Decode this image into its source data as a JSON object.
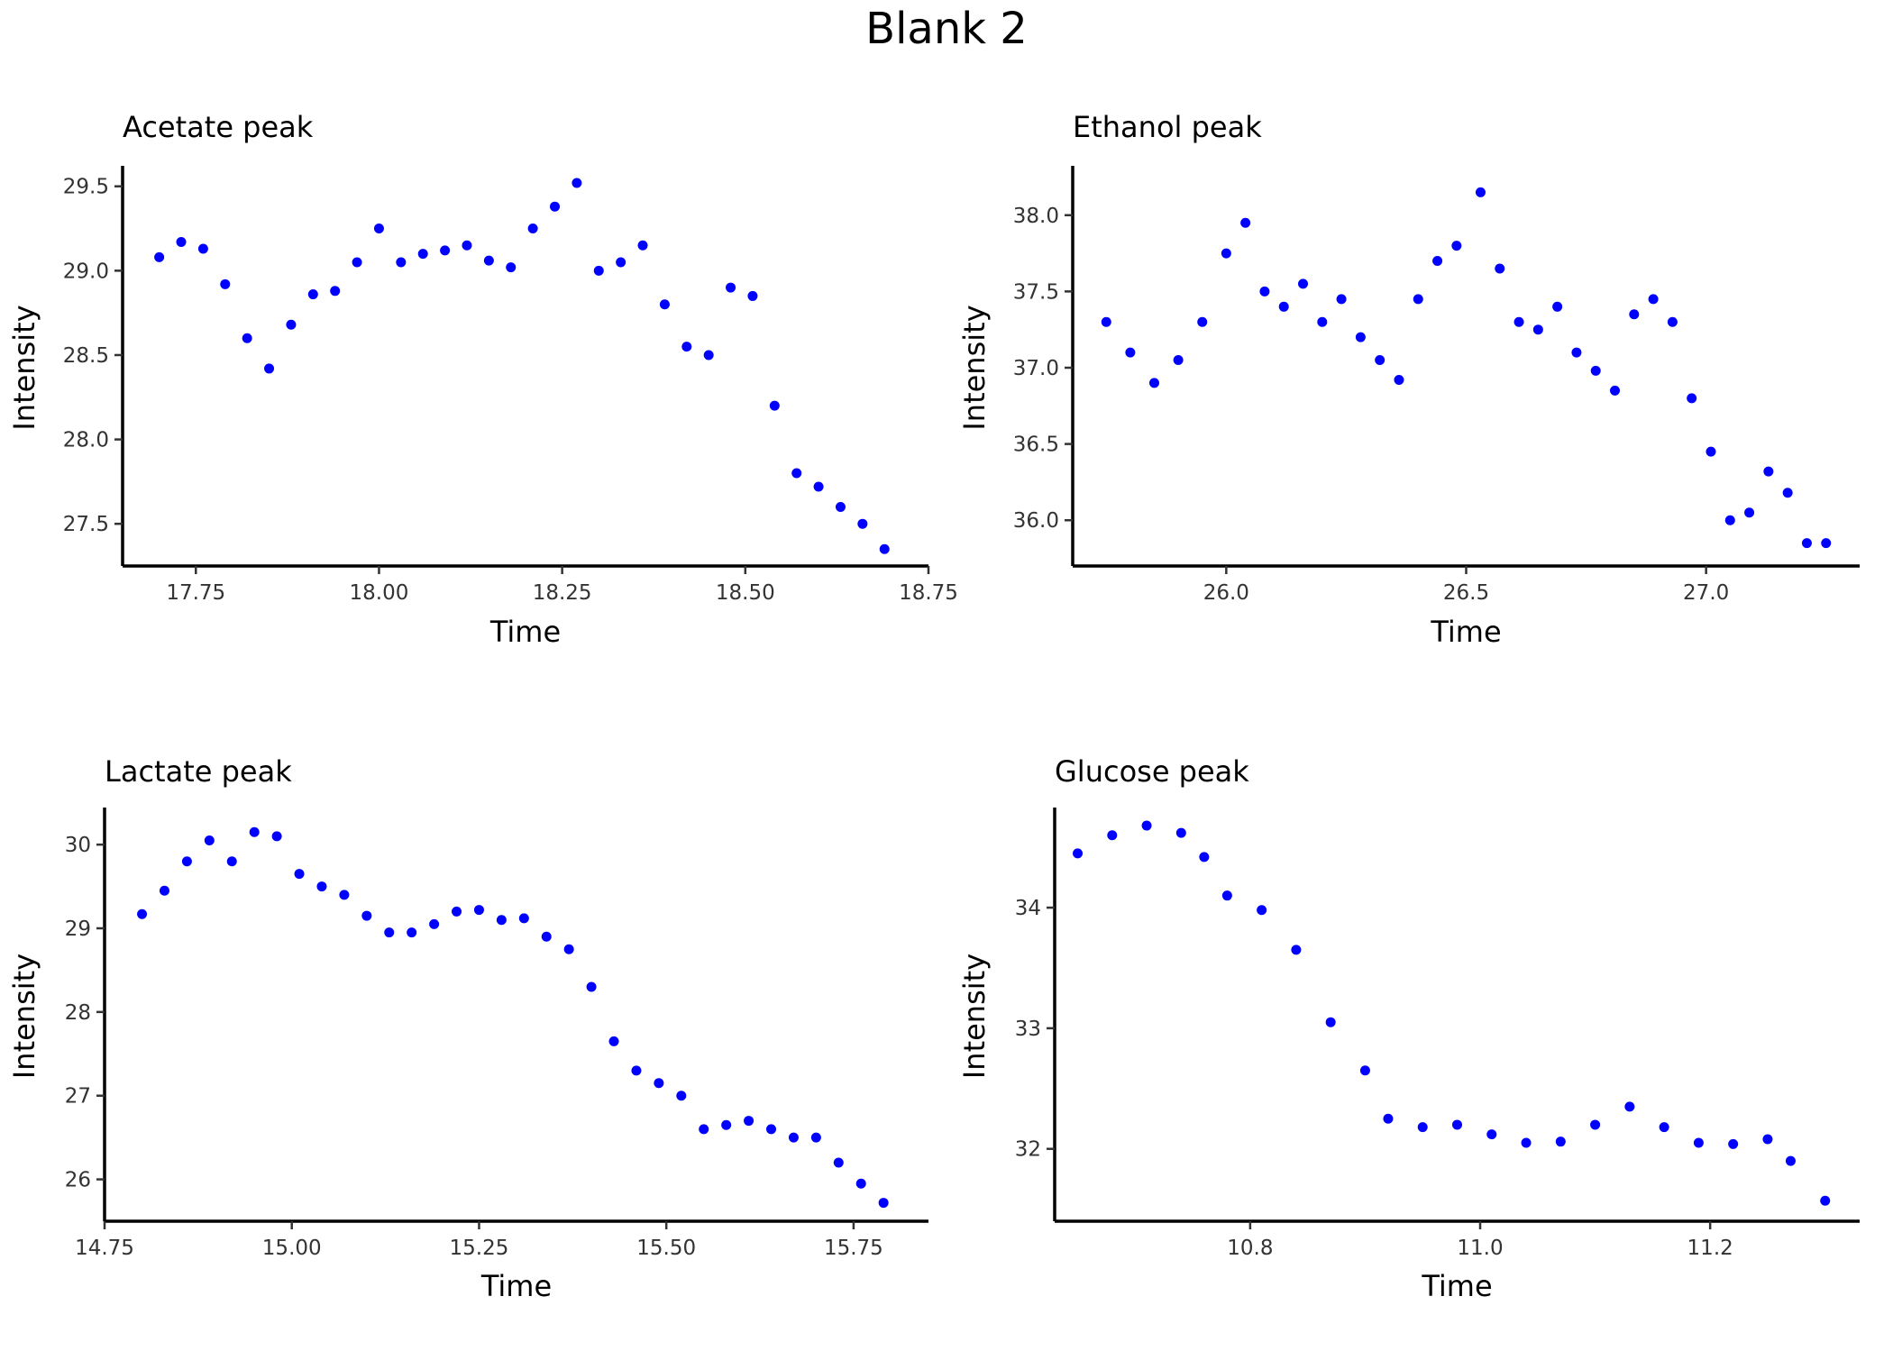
{
  "title": "Blank 2",
  "chart_data": [
    {
      "type": "scatter",
      "title": "Acetate peak",
      "xlabel": "Time",
      "ylabel": "Intensity",
      "xlim": [
        17.65,
        18.75
      ],
      "ylim": [
        27.25,
        29.6
      ],
      "xticks": [
        17.75,
        18.0,
        18.25,
        18.5,
        18.75
      ],
      "xtick_labels": [
        "17.75",
        "18.00",
        "18.25",
        "18.50",
        "18.75"
      ],
      "yticks": [
        27.5,
        28.0,
        28.5,
        29.0,
        29.5
      ],
      "ytick_labels": [
        "27.5",
        "28.0",
        "28.5",
        "29.0",
        "29.5"
      ],
      "color": "#0000ff",
      "grid": false,
      "x": [
        17.7,
        17.73,
        17.76,
        17.79,
        17.82,
        17.85,
        17.88,
        17.91,
        17.94,
        17.97,
        18.0,
        18.03,
        18.06,
        18.09,
        18.12,
        18.15,
        18.18,
        18.21,
        18.24,
        18.27,
        18.3,
        18.33,
        18.36,
        18.39,
        18.42,
        18.45,
        18.48,
        18.51,
        18.54,
        18.57,
        18.6,
        18.63,
        18.66,
        18.69
      ],
      "y": [
        29.08,
        29.17,
        29.13,
        28.92,
        28.6,
        28.42,
        28.68,
        28.86,
        28.88,
        29.05,
        29.25,
        29.05,
        29.1,
        29.12,
        29.15,
        29.06,
        29.02,
        29.25,
        29.38,
        29.52,
        29.0,
        29.05,
        29.15,
        28.8,
        28.55,
        28.5,
        28.9,
        28.85,
        28.2,
        27.8,
        27.72,
        27.6,
        27.5,
        27.35
      ]
    },
    {
      "type": "scatter",
      "title": "Ethanol peak",
      "xlabel": "Time",
      "ylabel": "Intensity",
      "xlim": [
        25.68,
        27.32
      ],
      "ylim": [
        35.7,
        38.3
      ],
      "xticks": [
        26.0,
        26.5,
        27.0
      ],
      "xtick_labels": [
        "26.0",
        "26.5",
        "27.0"
      ],
      "yticks": [
        36.0,
        36.5,
        37.0,
        37.5,
        38.0
      ],
      "ytick_labels": [
        "36.0",
        "36.5",
        "37.0",
        "37.5",
        "38.0"
      ],
      "color": "#0000ff",
      "grid": false,
      "x": [
        25.75,
        25.8,
        25.85,
        25.9,
        25.95,
        26.0,
        26.04,
        26.08,
        26.12,
        26.16,
        26.2,
        26.24,
        26.28,
        26.32,
        26.36,
        26.4,
        26.44,
        26.48,
        26.53,
        26.57,
        26.61,
        26.65,
        26.69,
        26.73,
        26.77,
        26.81,
        26.85,
        26.89,
        26.93,
        26.97,
        27.01,
        27.05,
        27.09,
        27.13,
        27.17,
        27.21,
        27.25
      ],
      "y": [
        37.3,
        37.1,
        36.9,
        37.05,
        37.3,
        37.75,
        37.95,
        37.5,
        37.4,
        37.55,
        37.3,
        37.45,
        37.2,
        37.05,
        36.92,
        37.45,
        37.7,
        37.8,
        38.15,
        37.65,
        37.3,
        37.25,
        37.4,
        37.1,
        36.98,
        36.85,
        37.35,
        37.45,
        37.3,
        36.8,
        36.45,
        36.0,
        36.05,
        36.32,
        36.18,
        35.85,
        35.85
      ]
    },
    {
      "type": "scatter",
      "title": "Lactate peak",
      "xlabel": "Time",
      "ylabel": "Intensity",
      "xlim": [
        14.75,
        15.85
      ],
      "ylim": [
        25.5,
        30.4
      ],
      "xticks": [
        14.75,
        15.0,
        15.25,
        15.5,
        15.75
      ],
      "xtick_labels": [
        "14.75",
        "15.00",
        "15.25",
        "15.50",
        "15.75"
      ],
      "yticks": [
        26,
        27,
        28,
        29,
        30
      ],
      "ytick_labels": [
        "26",
        "27",
        "28",
        "29",
        "30"
      ],
      "color": "#0000ff",
      "grid": false,
      "x": [
        14.8,
        14.83,
        14.86,
        14.89,
        14.92,
        14.95,
        14.98,
        15.01,
        15.04,
        15.07,
        15.1,
        15.13,
        15.16,
        15.19,
        15.22,
        15.25,
        15.28,
        15.31,
        15.34,
        15.37,
        15.4,
        15.43,
        15.46,
        15.49,
        15.52,
        15.55,
        15.58,
        15.61,
        15.64,
        15.67,
        15.7,
        15.73,
        15.76,
        15.79
      ],
      "y": [
        29.17,
        29.45,
        29.8,
        30.05,
        29.8,
        30.15,
        30.1,
        29.65,
        29.5,
        29.4,
        29.15,
        28.95,
        28.95,
        29.05,
        29.2,
        29.22,
        29.1,
        29.12,
        28.9,
        28.75,
        28.3,
        27.65,
        27.3,
        27.15,
        27.0,
        26.6,
        26.65,
        26.7,
        26.6,
        26.5,
        26.5,
        26.2,
        25.95,
        25.72
      ]
    },
    {
      "type": "scatter",
      "title": "Glucose peak",
      "xlabel": "Time",
      "ylabel": "Intensity",
      "xlim": [
        10.63,
        11.33
      ],
      "ylim": [
        31.4,
        34.8
      ],
      "xticks": [
        10.8,
        11.0,
        11.2
      ],
      "xtick_labels": [
        "10.8",
        "11.0",
        "11.2"
      ],
      "yticks": [
        32,
        33,
        34
      ],
      "ytick_labels": [
        "32",
        "33",
        "34"
      ],
      "color": "#0000ff",
      "grid": false,
      "x": [
        10.65,
        10.68,
        10.71,
        10.74,
        10.76,
        10.78,
        10.81,
        10.84,
        10.87,
        10.9,
        10.92,
        10.95,
        10.98,
        11.01,
        11.04,
        11.07,
        11.1,
        11.13,
        11.16,
        11.19,
        11.22,
        11.25,
        11.27,
        11.3
      ],
      "y": [
        34.45,
        34.6,
        34.68,
        34.62,
        34.42,
        34.1,
        33.98,
        33.65,
        33.05,
        32.65,
        32.25,
        32.18,
        32.2,
        32.12,
        32.05,
        32.06,
        32.2,
        32.35,
        32.18,
        32.05,
        32.04,
        32.08,
        31.9,
        31.57
      ]
    }
  ]
}
